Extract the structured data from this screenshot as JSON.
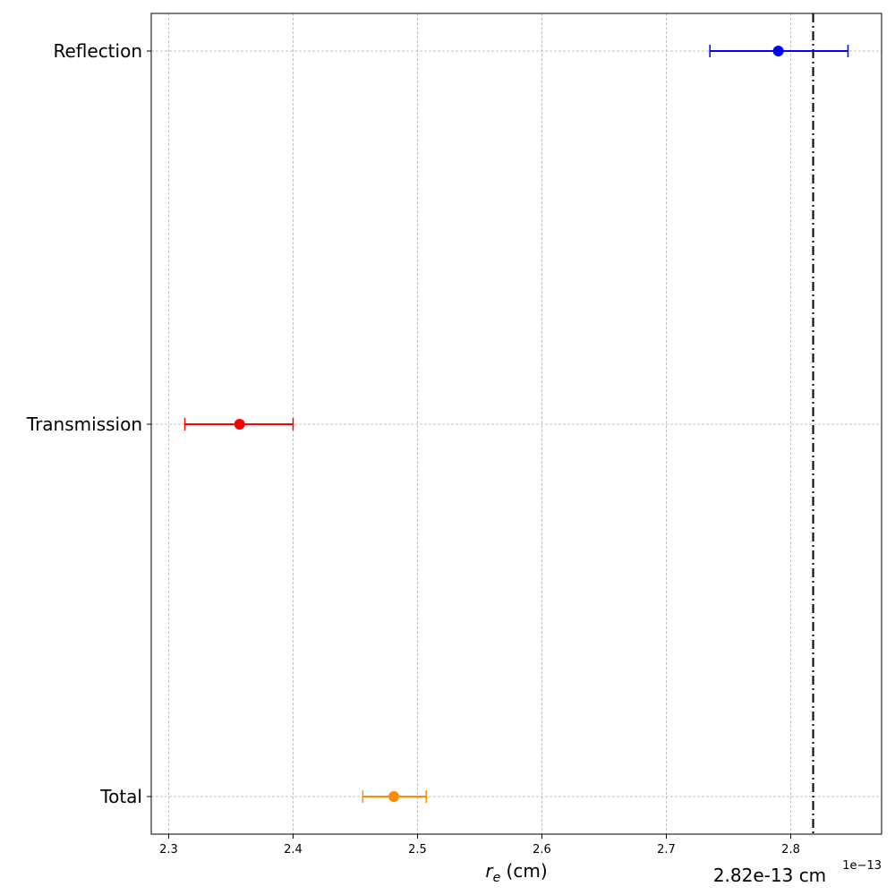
{
  "chart_data": {
    "type": "scatter",
    "orientation": "horizontal",
    "title": "",
    "xlabel_italic": "r",
    "xlabel_sub": "e",
    "xlabel_units": " (cm)",
    "x_offset_label": "1e−13",
    "xlim": [
      2.286,
      2.873
    ],
    "x_scale_factor": 1e-13,
    "xticks": [
      2.3,
      2.4,
      2.5,
      2.6,
      2.7,
      2.8
    ],
    "xtick_labels": [
      "2.3",
      "2.4",
      "2.5",
      "2.6",
      "2.7",
      "2.8"
    ],
    "categories": [
      "Total",
      "Transmission",
      "Reflection"
    ],
    "grid": true,
    "points": [
      {
        "category": "Reflection",
        "x": 2.79,
        "xerr_low": 2.735,
        "xerr_high": 2.846,
        "color": "#0000ff"
      },
      {
        "category": "Transmission",
        "x": 2.357,
        "xerr_low": 2.313,
        "xerr_high": 2.4,
        "color": "#ff0000"
      },
      {
        "category": "Total",
        "x": 2.481,
        "xerr_low": 2.456,
        "xerr_high": 2.507,
        "color": "#ff8c00"
      }
    ],
    "reference_line": {
      "x": 2.818,
      "label": "2.82e-13 cm",
      "color": "#000000",
      "style": "dash-dot"
    }
  }
}
